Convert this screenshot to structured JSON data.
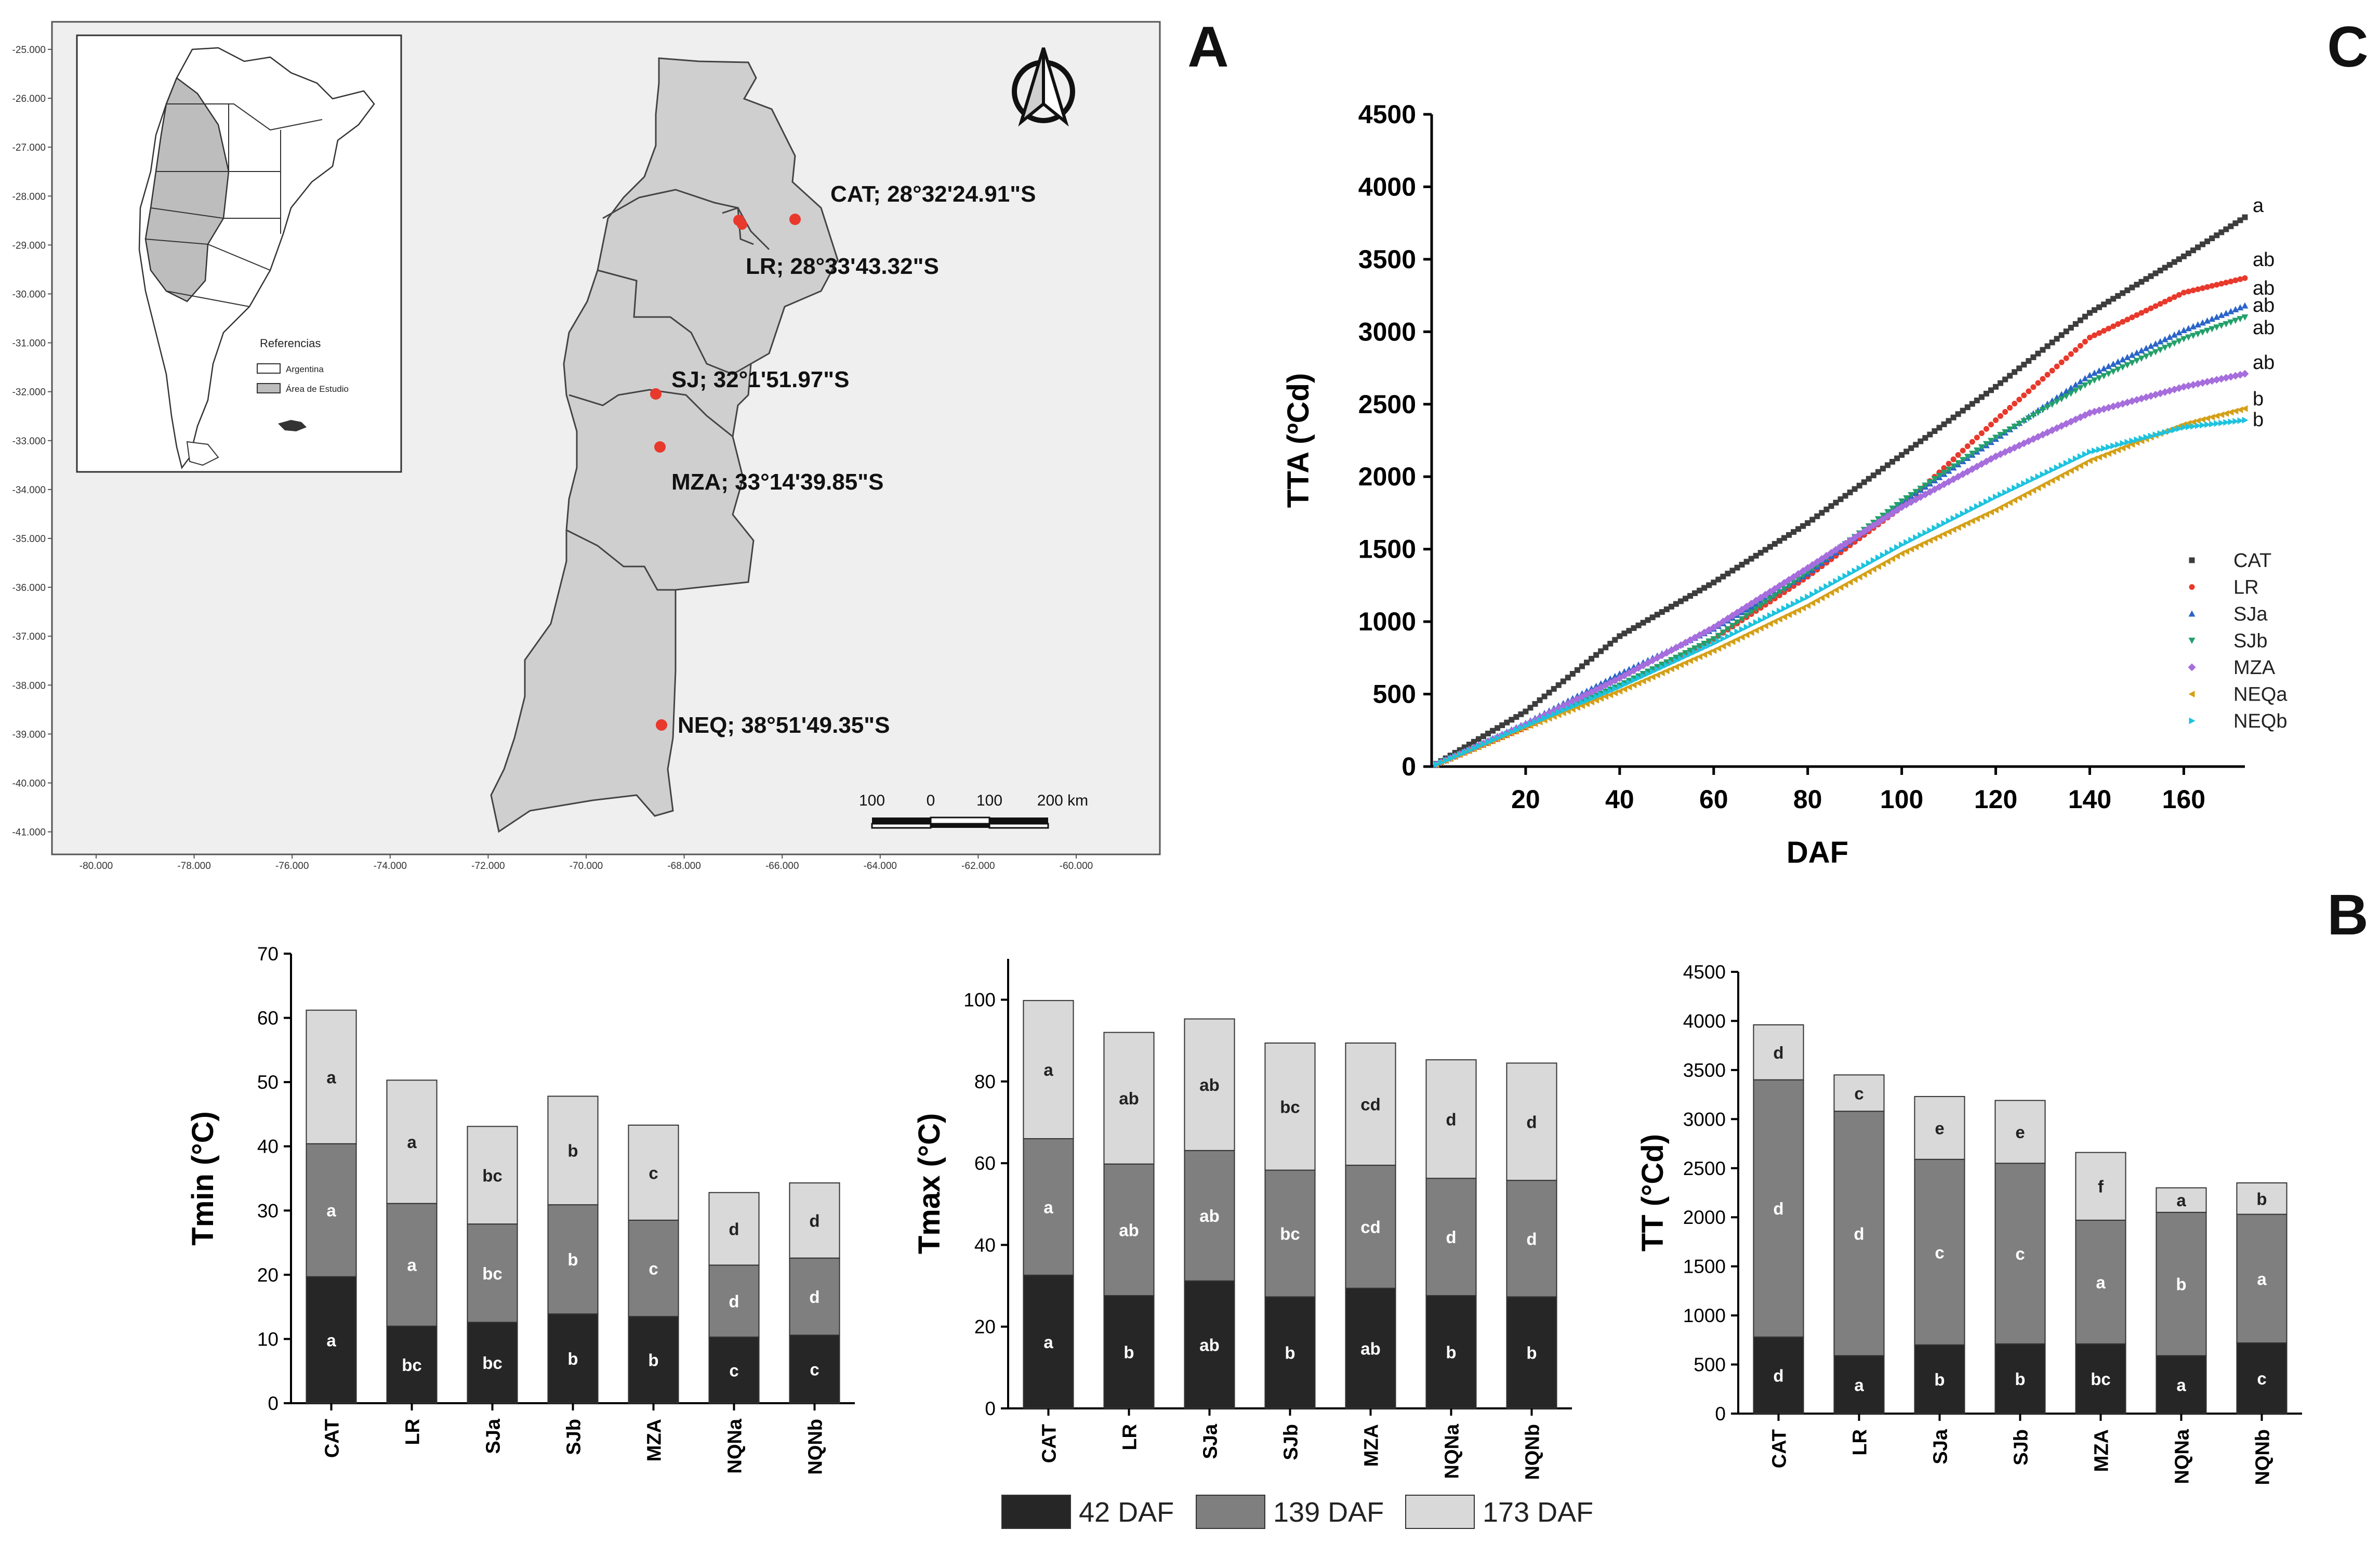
{
  "panel_letters": {
    "a": "A",
    "b": "B",
    "c": "C"
  },
  "colors": {
    "dark": "#262626",
    "mid": "#7f7f7f",
    "light": "#d9d9d9",
    "map_fill": "#cfcfcf",
    "map_bg": "#efefef",
    "site": "#e8392c",
    "axis": "#000000"
  },
  "map": {
    "inset_title": "Referencias",
    "inset_legend": [
      "Argentina",
      "Área de Estudio"
    ],
    "north_label": "N",
    "sites": [
      {
        "code": "CAT",
        "label": "CAT; 28°32'24.91\"S"
      },
      {
        "code": "LR",
        "label": "LR; 28°33'43.32\"S"
      },
      {
        "code": "SJ",
        "label": "SJ; 32°1'51.97\"S"
      },
      {
        "code": "MZA",
        "label": "MZA; 33°14'39.85\"S"
      },
      {
        "code": "NEQ",
        "label": "NEQ; 38°51'49.35\"S"
      }
    ],
    "lat_ticks": [
      "-25.000",
      "-26.000",
      "-27.000",
      "-28.000",
      "-29.000",
      "-30.000",
      "-31.000",
      "-32.000",
      "-33.000",
      "-34.000",
      "-35.000",
      "-36.000",
      "-37.000",
      "-38.000",
      "-39.000",
      "-40.000",
      "-41.000"
    ],
    "lon_ticks": [
      "-80.000",
      "-78.000",
      "-76.000",
      "-74.000",
      "-72.000",
      "-70.000",
      "-68.000",
      "-66.000",
      "-64.000",
      "-62.000",
      "-60.000"
    ],
    "scale_labels": [
      "100",
      "0",
      "100",
      "200 km"
    ]
  },
  "legend": {
    "items": [
      "42 DAF",
      "139 DAF",
      "173 DAF"
    ]
  },
  "chart_data": [
    {
      "id": "tta",
      "type": "scatter",
      "title": "",
      "xlabel": "DAF",
      "ylabel": "TTA (ºCd)",
      "xlim": [
        0,
        173
      ],
      "ylim": [
        0,
        4500
      ],
      "xticks": [
        20,
        40,
        60,
        80,
        100,
        120,
        140,
        160
      ],
      "yticks": [
        0,
        500,
        1000,
        1500,
        2000,
        2500,
        3000,
        3500,
        4000,
        4500
      ],
      "series": [
        {
          "name": "CAT",
          "color": "#3d3d3d",
          "marker": "square",
          "letter": "a",
          "points": [
            [
              0,
              0
            ],
            [
              20,
              380
            ],
            [
              40,
              900
            ],
            [
              60,
              1270
            ],
            [
              80,
              1680
            ],
            [
              100,
              2150
            ],
            [
              120,
              2620
            ],
            [
              140,
              3130
            ],
            [
              160,
              3520
            ],
            [
              173,
              3790
            ]
          ]
        },
        {
          "name": "LR",
          "color": "#e8392c",
          "marker": "circle",
          "letter": "ab",
          "points": [
            [
              0,
              0
            ],
            [
              20,
              270
            ],
            [
              40,
              560
            ],
            [
              60,
              880
            ],
            [
              80,
              1310
            ],
            [
              100,
              1790
            ],
            [
              120,
              2390
            ],
            [
              140,
              2960
            ],
            [
              160,
              3270
            ],
            [
              173,
              3370
            ]
          ]
        },
        {
          "name": "SJa",
          "color": "#2b64c8",
          "marker": "triangle",
          "letter": "ab",
          "points": [
            [
              0,
              0
            ],
            [
              20,
              300
            ],
            [
              40,
              640
            ],
            [
              60,
              950
            ],
            [
              80,
              1330
            ],
            [
              100,
              1820
            ],
            [
              120,
              2260
            ],
            [
              140,
              2700
            ],
            [
              160,
              3010
            ],
            [
              173,
              3180
            ]
          ]
        },
        {
          "name": "SJb",
          "color": "#23a06a",
          "marker": "tri-down",
          "letter": "ab",
          "points": [
            [
              0,
              0
            ],
            [
              20,
              280
            ],
            [
              40,
              560
            ],
            [
              60,
              880
            ],
            [
              80,
              1340
            ],
            [
              100,
              1830
            ],
            [
              120,
              2270
            ],
            [
              140,
              2650
            ],
            [
              160,
              2950
            ],
            [
              173,
              3100
            ]
          ]
        },
        {
          "name": "MZA",
          "color": "#a66ddc",
          "marker": "diamond",
          "letter": "ab",
          "points": [
            [
              0,
              0
            ],
            [
              20,
              290
            ],
            [
              40,
              610
            ],
            [
              60,
              960
            ],
            [
              80,
              1370
            ],
            [
              100,
              1790
            ],
            [
              120,
              2140
            ],
            [
              140,
              2440
            ],
            [
              160,
              2620
            ],
            [
              173,
              2710
            ]
          ]
        },
        {
          "name": "NEQa",
          "color": "#d4a017",
          "marker": "tri-left",
          "letter": "b",
          "points": [
            [
              0,
              0
            ],
            [
              20,
              270
            ],
            [
              40,
              520
            ],
            [
              60,
              800
            ],
            [
              80,
              1110
            ],
            [
              100,
              1470
            ],
            [
              120,
              1770
            ],
            [
              140,
              2110
            ],
            [
              160,
              2360
            ],
            [
              173,
              2470
            ]
          ]
        },
        {
          "name": "NEQb",
          "color": "#1ec3dd",
          "marker": "tri-right",
          "letter": "b",
          "points": [
            [
              0,
              0
            ],
            [
              20,
              280
            ],
            [
              40,
              550
            ],
            [
              60,
              850
            ],
            [
              80,
              1170
            ],
            [
              100,
              1530
            ],
            [
              120,
              1860
            ],
            [
              140,
              2170
            ],
            [
              160,
              2340
            ],
            [
              173,
              2390
            ]
          ]
        }
      ]
    },
    {
      "id": "tmin",
      "type": "bar",
      "stacked": true,
      "ylabel": "Tmin (°C)",
      "ylim": [
        0,
        70
      ],
      "yticks": [
        0,
        10,
        20,
        30,
        40,
        50,
        60,
        70
      ],
      "categories": [
        "CAT",
        "LR",
        "SJa",
        "SJb",
        "MZA",
        "NQNa",
        "NQNb"
      ],
      "series": [
        {
          "name": "42 DAF",
          "values": [
            19.7,
            12.0,
            12.6,
            13.9,
            13.5,
            10.3,
            10.6
          ],
          "letters": [
            "a",
            "bc",
            "bc",
            "b",
            "b",
            "c",
            "c"
          ]
        },
        {
          "name": "139 DAF",
          "values": [
            20.7,
            19.1,
            15.3,
            17.0,
            15.0,
            11.2,
            12.0
          ],
          "letters": [
            "a",
            "a",
            "bc",
            "b",
            "c",
            "d",
            "d"
          ]
        },
        {
          "name": "173 DAF",
          "values": [
            20.8,
            19.2,
            15.2,
            16.9,
            14.8,
            11.3,
            11.7
          ],
          "letters": [
            "a",
            "a",
            "bc",
            "b",
            "c",
            "d",
            "d"
          ]
        }
      ]
    },
    {
      "id": "tmax",
      "type": "bar",
      "stacked": true,
      "ylabel": "Tmax (°C)",
      "ylim": [
        0,
        110
      ],
      "yticks": [
        0,
        20,
        40,
        60,
        80,
        100
      ],
      "categories": [
        "CAT",
        "LR",
        "SJa",
        "SJb",
        "MZA",
        "NQNa",
        "NQNb"
      ],
      "series": [
        {
          "name": "42 DAF",
          "values": [
            32.6,
            27.6,
            31.2,
            27.3,
            29.4,
            27.6,
            27.3
          ],
          "letters": [
            "a",
            "b",
            "ab",
            "b",
            "ab",
            "b",
            "b"
          ]
        },
        {
          "name": "139 DAF",
          "values": [
            33.4,
            32.2,
            31.9,
            31.0,
            30.1,
            28.7,
            28.5
          ],
          "letters": [
            "a",
            "ab",
            "ab",
            "bc",
            "cd",
            "d",
            "d"
          ]
        },
        {
          "name": "173 DAF",
          "values": [
            33.8,
            32.2,
            32.2,
            31.1,
            29.9,
            29.0,
            28.7
          ],
          "letters": [
            "a",
            "ab",
            "ab",
            "bc",
            "cd",
            "d",
            "d"
          ]
        }
      ]
    },
    {
      "id": "tt",
      "type": "bar",
      "stacked": true,
      "ylabel": "TT (°Cd)",
      "ylim": [
        0,
        4500
      ],
      "yticks": [
        0,
        500,
        1000,
        1500,
        2000,
        2500,
        3000,
        3500,
        4000,
        4500
      ],
      "categories": [
        "CAT",
        "LR",
        "SJa",
        "SJb",
        "MZA",
        "NQNa",
        "NQNb"
      ],
      "series": [
        {
          "name": "42 DAF",
          "values": [
            780,
            590,
            700,
            710,
            710,
            590,
            720
          ],
          "letters": [
            "d",
            "a",
            "b",
            "b",
            "bc",
            "a",
            "c"
          ]
        },
        {
          "name": "139 DAF",
          "values": [
            2620,
            2490,
            1890,
            1840,
            1260,
            1460,
            1310
          ],
          "letters": [
            "d",
            "d",
            "c",
            "c",
            "a",
            "b",
            "a"
          ]
        },
        {
          "name": "173 DAF",
          "values": [
            560,
            370,
            640,
            640,
            690,
            250,
            320
          ],
          "letters": [
            "d",
            "c",
            "e",
            "e",
            "f",
            "a",
            "b"
          ]
        }
      ]
    }
  ]
}
